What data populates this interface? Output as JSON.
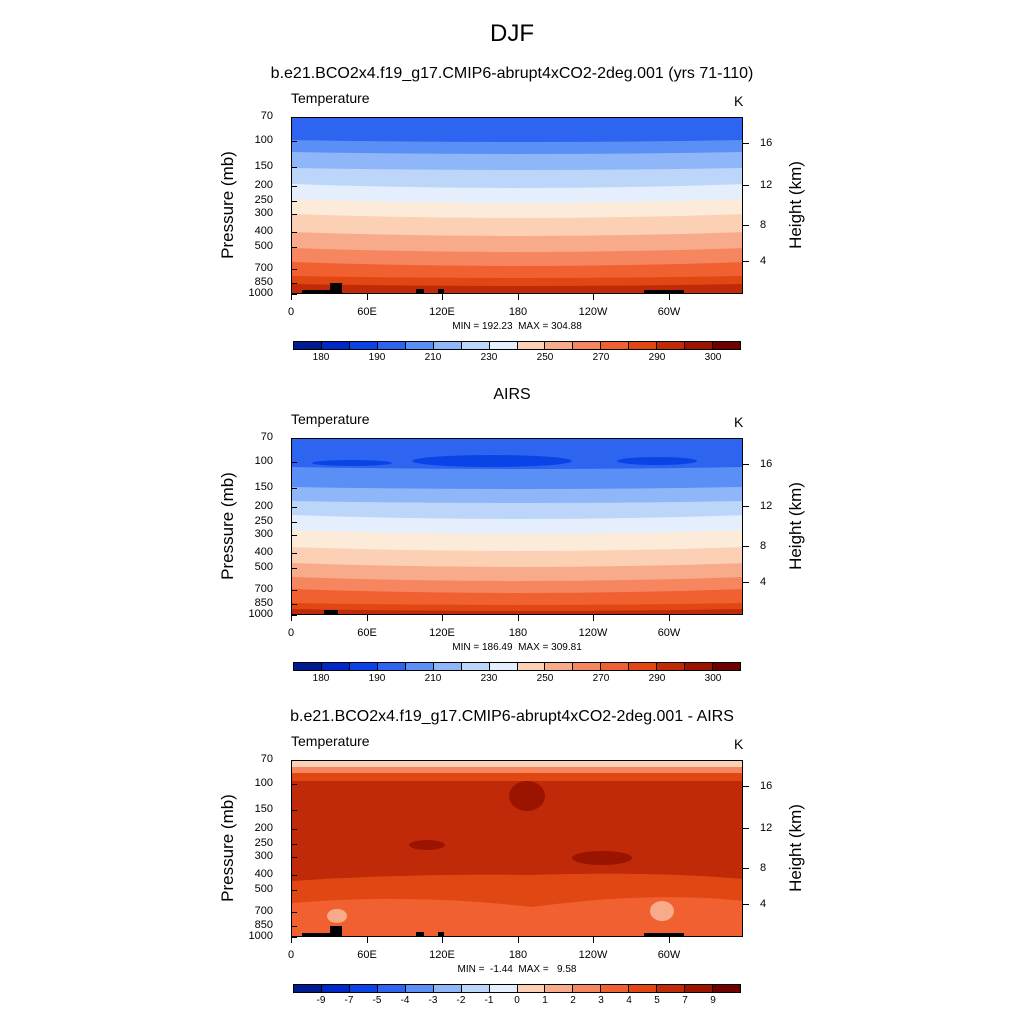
{
  "title": "DJF",
  "colors": {
    "levels": [
      "#001b8f",
      "#0028c8",
      "#0b44e6",
      "#2d64f0",
      "#5a8ff5",
      "#8fb6f8",
      "#bcd6fa",
      "#e4eefc",
      "#fcebd8",
      "#fbd0b4",
      "#f8ab8a",
      "#f58660",
      "#f06030",
      "#e04712",
      "#c02a08",
      "#9a1400",
      "#6e0000"
    ]
  },
  "axes": {
    "pressure_ticks": [
      "70",
      "100",
      "150",
      "200",
      "250",
      "300",
      "400",
      "500",
      "700",
      "850",
      "1000"
    ],
    "height_ticks": [
      "16",
      "12",
      "8",
      "4"
    ],
    "lon_ticks": [
      "0",
      "60E",
      "120E",
      "180",
      "120W",
      "60W"
    ],
    "left_label": "Pressure (mb)",
    "right_label": "Height (km)"
  },
  "panels": [
    {
      "title": "b.e21.BCO2x4.f19_g17.CMIP6-abrupt4xCO2-2deg.001 (yrs 71-110)",
      "variable": "Temperature",
      "units": "K",
      "minmax": "MIN = 192.23  MAX = 304.88",
      "colorbar_labels": [
        "180",
        "190",
        "210",
        "230",
        "250",
        "270",
        "290",
        "300"
      ]
    },
    {
      "title": "AIRS",
      "variable": "Temperature",
      "units": "K",
      "minmax": "MIN = 186.49  MAX = 309.81",
      "colorbar_labels": [
        "180",
        "190",
        "210",
        "230",
        "250",
        "270",
        "290",
        "300"
      ]
    },
    {
      "title": "b.e21.BCO2x4.f19_g17.CMIP6-abrupt4xCO2-2deg.001 - AIRS",
      "variable": "Temperature",
      "units": "K",
      "minmax": "MIN =  -1.44  MAX =   9.58",
      "colorbar_labels": [
        "-9",
        "-7",
        "-5",
        "-4",
        "-3",
        "-2",
        "-1",
        "0",
        "1",
        "2",
        "3",
        "4",
        "5",
        "7",
        "9"
      ]
    }
  ],
  "chart_data": [
    {
      "type": "heatmap",
      "title": "b.e21.BCO2x4.f19_g17.CMIP6-abrupt4xCO2-2deg.001 (yrs 71-110)",
      "subtitle": "Temperature",
      "units": "K",
      "xlabel": "",
      "ylabel": "Pressure (mb)",
      "y2label": "Height (km)",
      "x_ticks": [
        "0",
        "60E",
        "120E",
        "180",
        "120W",
        "60W"
      ],
      "y_ticks": [
        70,
        100,
        150,
        200,
        250,
        300,
        400,
        500,
        700,
        850,
        1000
      ],
      "y_scale": "log",
      "y_reversed": true,
      "min": 192.23,
      "max": 304.88,
      "levels": [
        180,
        185,
        190,
        200,
        210,
        220,
        230,
        240,
        250,
        260,
        270,
        280,
        290,
        295,
        300,
        305
      ],
      "profile": [
        [
          70,
          195
        ],
        [
          100,
          203
        ],
        [
          150,
          213
        ],
        [
          200,
          222
        ],
        [
          250,
          232
        ],
        [
          300,
          240
        ],
        [
          400,
          252
        ],
        [
          500,
          262
        ],
        [
          700,
          277
        ],
        [
          850,
          286
        ],
        [
          1000,
          296
        ]
      ]
    },
    {
      "type": "heatmap",
      "title": "AIRS",
      "subtitle": "Temperature",
      "units": "K",
      "xlabel": "",
      "ylabel": "Pressure (mb)",
      "y2label": "Height (km)",
      "x_ticks": [
        "0",
        "60E",
        "120E",
        "180",
        "120W",
        "60W"
      ],
      "y_ticks": [
        70,
        100,
        150,
        200,
        250,
        300,
        400,
        500,
        700,
        850,
        1000
      ],
      "y_scale": "log",
      "y_reversed": true,
      "min": 186.49,
      "max": 309.81,
      "levels": [
        180,
        185,
        190,
        200,
        210,
        220,
        230,
        240,
        250,
        260,
        270,
        280,
        290,
        295,
        300,
        305
      ],
      "profile": [
        [
          70,
          198
        ],
        [
          100,
          190
        ],
        [
          150,
          205
        ],
        [
          200,
          215
        ],
        [
          250,
          226
        ],
        [
          300,
          236
        ],
        [
          400,
          249
        ],
        [
          500,
          259
        ],
        [
          700,
          272
        ],
        [
          850,
          282
        ],
        [
          1000,
          292
        ]
      ]
    },
    {
      "type": "heatmap",
      "title": "b.e21.BCO2x4.f19_g17.CMIP6-abrupt4xCO2-2deg.001 - AIRS",
      "subtitle": "Temperature",
      "units": "K",
      "xlabel": "",
      "ylabel": "Pressure (mb)",
      "y2label": "Height (km)",
      "x_ticks": [
        "0",
        "60E",
        "120E",
        "180",
        "120W",
        "60W"
      ],
      "y_ticks": [
        70,
        100,
        150,
        200,
        250,
        300,
        400,
        500,
        700,
        850,
        1000
      ],
      "y_scale": "log",
      "y_reversed": true,
      "min": -1.44,
      "max": 9.58,
      "levels": [
        -9,
        -7,
        -5,
        -4,
        -3,
        -2,
        -1,
        0,
        1,
        2,
        3,
        4,
        5,
        7,
        9
      ],
      "profile": [
        [
          70,
          2
        ],
        [
          100,
          6
        ],
        [
          150,
          6
        ],
        [
          200,
          6
        ],
        [
          250,
          6
        ],
        [
          300,
          6
        ],
        [
          400,
          6
        ],
        [
          500,
          5
        ],
        [
          700,
          4
        ],
        [
          850,
          4
        ],
        [
          1000,
          5
        ]
      ]
    }
  ]
}
